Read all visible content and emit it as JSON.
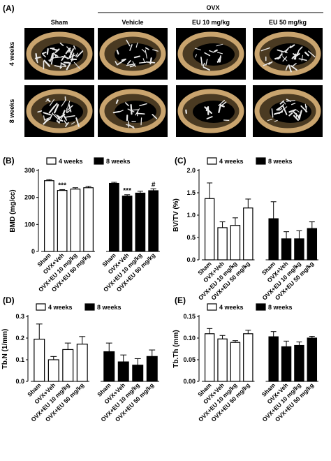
{
  "panel_A": {
    "label": "(A)",
    "group_header": "OVX",
    "columns": [
      "Sham",
      "Vehicle",
      "EU 10 mg/kg",
      "EU 50 mg/kg"
    ],
    "rows": [
      "4 weeks",
      "8 weeks"
    ],
    "trabecular_density": [
      [
        0.9,
        0.35,
        0.2,
        0.55
      ],
      [
        0.75,
        0.3,
        0.1,
        0.5
      ]
    ]
  },
  "chart_data": [
    {
      "type": "bar",
      "panel": "(B)",
      "ylabel": "BMD (mg/cc)",
      "ylim": [
        0,
        300
      ],
      "yticks": [
        0,
        100,
        200,
        300
      ],
      "categories": [
        "Sham",
        "OVX+Veh",
        "OVX+EU 10 mg/kg",
        "OVX+EU 50 mg/kg"
      ],
      "series": [
        {
          "name": "4 weeks",
          "values": [
            262,
            226,
            231,
            236
          ],
          "errors": [
            4,
            3,
            5,
            5
          ],
          "annotations": [
            "",
            "***",
            "",
            ""
          ]
        },
        {
          "name": "8 weeks",
          "values": [
            252,
            205,
            216,
            225
          ],
          "errors": [
            4,
            5,
            7,
            7
          ],
          "annotations": [
            "",
            "***",
            "",
            "#"
          ]
        }
      ]
    },
    {
      "type": "bar",
      "panel": "(C)",
      "ylabel": "BV/TV (%)",
      "ylim": [
        0,
        2.0
      ],
      "yticks": [
        "0.0",
        "0.5",
        "1.0",
        "1.5",
        "2.0"
      ],
      "categories": [
        "Sham",
        "OVX+Veh",
        "OVX+EU 10 mg/kg",
        "OVX+EU 50 mg/kg"
      ],
      "series": [
        {
          "name": "4 weeks",
          "values": [
            1.37,
            0.72,
            0.77,
            1.16
          ],
          "errors": [
            0.35,
            0.13,
            0.17,
            0.2
          ]
        },
        {
          "name": "8 weeks",
          "values": [
            0.92,
            0.47,
            0.47,
            0.7
          ],
          "errors": [
            0.38,
            0.16,
            0.18,
            0.15
          ]
        }
      ]
    },
    {
      "type": "bar",
      "panel": "(D)",
      "ylabel": "Tb.N (1/mm)",
      "ylim": [
        0,
        0.3
      ],
      "yticks": [
        "0.0",
        "0.1",
        "0.2",
        "0.3"
      ],
      "categories": [
        "Sham",
        "OVX+Veh",
        "OVX+EU 10 mg/kg",
        "OVX+EU 50 mg/kg"
      ],
      "series": [
        {
          "name": "4 weeks",
          "values": [
            0.195,
            0.1,
            0.147,
            0.172
          ],
          "errors": [
            0.07,
            0.015,
            0.03,
            0.035
          ]
        },
        {
          "name": "8 weeks",
          "values": [
            0.137,
            0.09,
            0.075,
            0.115
          ],
          "errors": [
            0.04,
            0.032,
            0.03,
            0.03
          ]
        }
      ]
    },
    {
      "type": "bar",
      "panel": "(E)",
      "ylabel": "Tb.Th (mm)",
      "ylim": [
        0,
        0.15
      ],
      "yticks": [
        "0.00",
        "0.05",
        "0.10",
        "0.15"
      ],
      "categories": [
        "Sham",
        "OVX+Veh",
        "OVX+EU 10 mg/kg",
        "OVX+EU 50 mg/kg"
      ],
      "series": [
        {
          "name": "4 weeks",
          "values": [
            0.11,
            0.098,
            0.09,
            0.11
          ],
          "errors": [
            0.012,
            0.008,
            0.004,
            0.008
          ]
        },
        {
          "name": "8 weeks",
          "values": [
            0.103,
            0.08,
            0.083,
            0.1
          ],
          "errors": [
            0.012,
            0.013,
            0.008,
            0.004
          ]
        }
      ]
    }
  ]
}
